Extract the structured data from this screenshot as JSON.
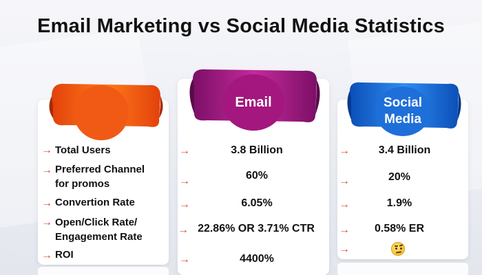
{
  "title": "Email Marketing vs Social Media Statistics",
  "colors": {
    "ribbon_labels": "#f05a14",
    "ribbon_email": "#a3177e",
    "ribbon_social": "#1e6fd9",
    "arrow": "#e8452c"
  },
  "labels_column": {
    "header": "",
    "rows": [
      [
        "Total Users"
      ],
      [
        "Preferred Channel",
        "for promos"
      ],
      [
        "Convertion Rate"
      ],
      [
        "Open/Click Rate/",
        "Engagement Rate"
      ],
      [
        "ROI"
      ]
    ]
  },
  "email_column": {
    "header": "Email",
    "values": [
      "3.8 Billion",
      "60%",
      "6.05%",
      "22.86% OR  3.71% CTR",
      "4400%"
    ]
  },
  "social_column": {
    "header_lines": [
      "Social",
      "Media"
    ],
    "values": [
      "3.4 Billion",
      "20%",
      "1.9%",
      "0.58% ER"
    ],
    "roi_icon": "thinking-face-icon"
  },
  "arrow_glyph": "→"
}
